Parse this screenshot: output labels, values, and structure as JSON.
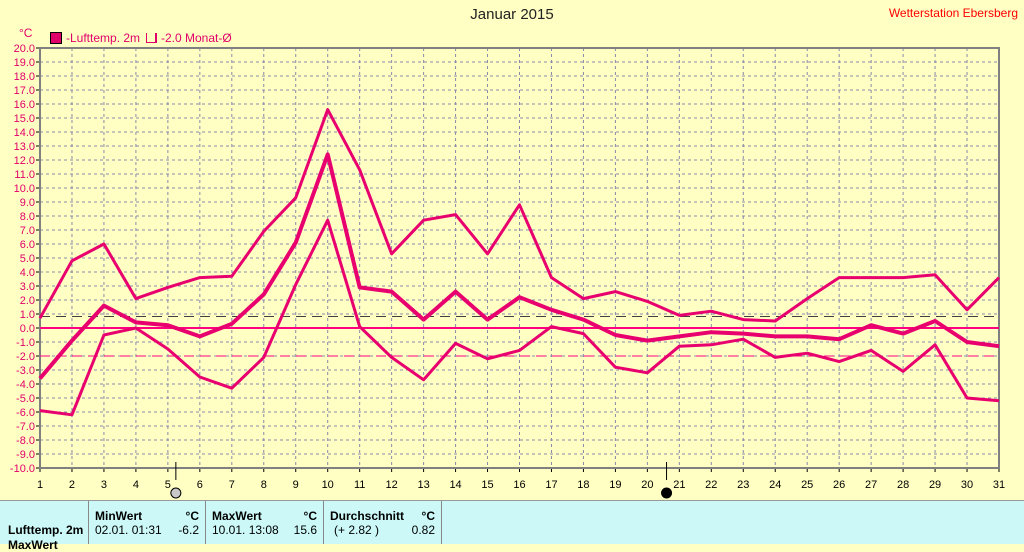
{
  "header": {
    "title": "Januar 2015",
    "station": "Wetterstation Ebersberg",
    "unit": "°C"
  },
  "legend": [
    {
      "label": "-Lufttemp. 2m"
    },
    {
      "label": "-2.0 Monat-Ø"
    }
  ],
  "chart_data": {
    "type": "line",
    "title": "Januar 2015",
    "ylabel": "°C",
    "ylim": [
      -10,
      20
    ],
    "xlim": [
      1,
      31
    ],
    "grid": true,
    "x": [
      1,
      2,
      3,
      4,
      5,
      6,
      7,
      8,
      9,
      10,
      11,
      12,
      13,
      14,
      15,
      16,
      17,
      18,
      19,
      20,
      21,
      22,
      23,
      24,
      25,
      26,
      27,
      28,
      29,
      30,
      31
    ],
    "yticks": [
      "20.0",
      "19.0",
      "18.0",
      "17.0",
      "16.0",
      "15.0",
      "14.0",
      "13.0",
      "12.0",
      "11.0",
      "10.0",
      "9.0",
      "8.0",
      "7.0",
      "6.0",
      "5.0",
      "4.0",
      "3.0",
      "2.0",
      "1.0",
      "0.0",
      "-1.0",
      "-2.0",
      "-3.0",
      "-4.0",
      "-5.0",
      "-6.0",
      "-7.0",
      "-8.0",
      "-9.0",
      "-10.0"
    ],
    "series": [
      {
        "role": "max",
        "values": [
          0.7,
          4.8,
          6.0,
          2.1,
          2.9,
          3.6,
          3.7,
          6.9,
          9.3,
          15.6,
          11.3,
          5.3,
          7.7,
          8.1,
          5.3,
          8.8,
          3.6,
          2.1,
          2.6,
          1.9,
          0.9,
          1.2,
          0.6,
          0.5,
          2.1,
          3.6,
          3.6,
          3.6,
          3.8,
          1.3,
          3.6
        ]
      },
      {
        "role": "mean",
        "values": [
          -3.6,
          -0.9,
          1.6,
          0.4,
          0.2,
          -0.6,
          0.3,
          2.4,
          6.1,
          12.4,
          2.9,
          2.6,
          0.6,
          2.6,
          0.6,
          2.2,
          1.3,
          0.6,
          -0.5,
          -0.9,
          -0.6,
          -0.3,
          -0.4,
          -0.6,
          -0.6,
          -0.8,
          0.2,
          -0.4,
          0.5,
          -1.0,
          -1.3
        ]
      },
      {
        "role": "min",
        "values": [
          -5.9,
          -6.2,
          -0.5,
          0.0,
          -1.5,
          -3.5,
          -4.3,
          -2.1,
          3.1,
          7.7,
          0.1,
          -2.1,
          -3.7,
          -1.1,
          -2.2,
          -1.6,
          0.1,
          -0.4,
          -2.8,
          -3.2,
          -1.3,
          -1.2,
          -0.8,
          -2.1,
          -1.8,
          -2.4,
          -1.6,
          -3.1,
          -1.2,
          -5.0,
          -5.2
        ]
      }
    ],
    "reference_lines": [
      {
        "value": 0.82,
        "style": "dashed",
        "color": "#404040"
      },
      {
        "value": 0,
        "style": "solid",
        "color": "#ff0080"
      },
      {
        "value": -2.0,
        "style": "dashed",
        "color": "#ff0080"
      }
    ],
    "moon_phases": [
      {
        "day": 5.25,
        "phase": "full"
      },
      {
        "day": 20.6,
        "phase": "new"
      }
    ],
    "colors": {
      "series": "#e8006e",
      "axis_labels": "#e0006a",
      "background": "#ffffc4"
    }
  },
  "table": {
    "row_label": "Lufttemp. 2m",
    "row2_label": "MaxWert",
    "min": {
      "header": "MinWert",
      "unit": "°C",
      "time": "02.01.  01:31",
      "value": "-6.2"
    },
    "max": {
      "header": "MaxWert",
      "unit": "°C",
      "time": "10.01.  13:08",
      "value": "15.6"
    },
    "avg": {
      "header": "Durchschnitt",
      "unit": "°C",
      "diff": "(+ 2.82 )",
      "value": "0.82"
    }
  }
}
